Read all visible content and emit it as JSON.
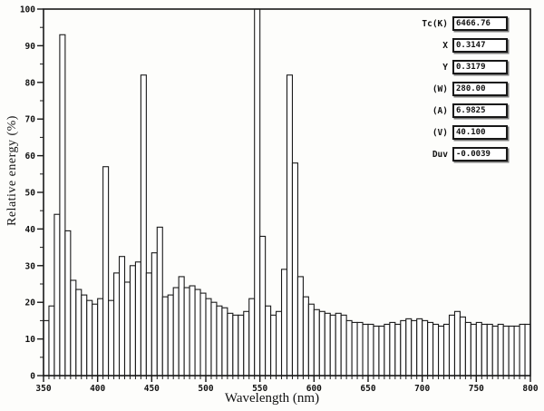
{
  "chart_data": {
    "type": "bar",
    "title": "",
    "xlabel": "Wavelength (nm)",
    "ylabel": "Relative energy  (%)",
    "xlim": [
      350,
      800
    ],
    "ylim": [
      0,
      100
    ],
    "x_start": 350,
    "x_step": 5,
    "x_tick_interval": 50,
    "x_minor_tick": 5,
    "y_tick_interval": 10,
    "y_minor_tick": 5,
    "grid": false,
    "x_tick_labels": [
      "350",
      "400",
      "450",
      "500",
      "550",
      "600",
      "650",
      "700",
      "750",
      "800"
    ],
    "y_tick_labels": [
      "0",
      "10",
      "20",
      "30",
      "40",
      "50",
      "60",
      "70",
      "80",
      "90",
      "100"
    ],
    "bar_fill": "#ffffff",
    "line_color": "#1a1a1a",
    "values": [
      15,
      19,
      44,
      93,
      39.5,
      26,
      23.5,
      22,
      20.5,
      19.5,
      21,
      57,
      20.5,
      28,
      32.5,
      25.5,
      30,
      31,
      82,
      28,
      33.5,
      40.5,
      21.5,
      22,
      24,
      27,
      24,
      24.5,
      23.5,
      22.5,
      21,
      20,
      19,
      18.5,
      17,
      16.5,
      16.5,
      17.5,
      21,
      100,
      38,
      19,
      16.5,
      17.5,
      29,
      82,
      58,
      27,
      21.5,
      19.5,
      18,
      17.5,
      17,
      16.5,
      17,
      16.5,
      15,
      14.5,
      14.5,
      14,
      14,
      13.5,
      13.5,
      14,
      14.5,
      14,
      15,
      15.5,
      15,
      15.5,
      15,
      14.5,
      14,
      13.5,
      14,
      16.5,
      17.5,
      16,
      14.5,
      14,
      14.5,
      14,
      14,
      13.5,
      14,
      13.5,
      13.5,
      13.5,
      14,
      14
    ]
  },
  "info_panel": {
    "rows": [
      {
        "label": "Tc(K)",
        "value": "6466.76"
      },
      {
        "label": "X",
        "value": "0.3147"
      },
      {
        "label": "Y",
        "value": "0.3179"
      },
      {
        "label": "(W)",
        "value": "280.00"
      },
      {
        "label": "(A)",
        "value": "6.9825"
      },
      {
        "label": "(V)",
        "value": "40.100"
      },
      {
        "label": "Duv",
        "value": "-0.0039"
      }
    ]
  }
}
